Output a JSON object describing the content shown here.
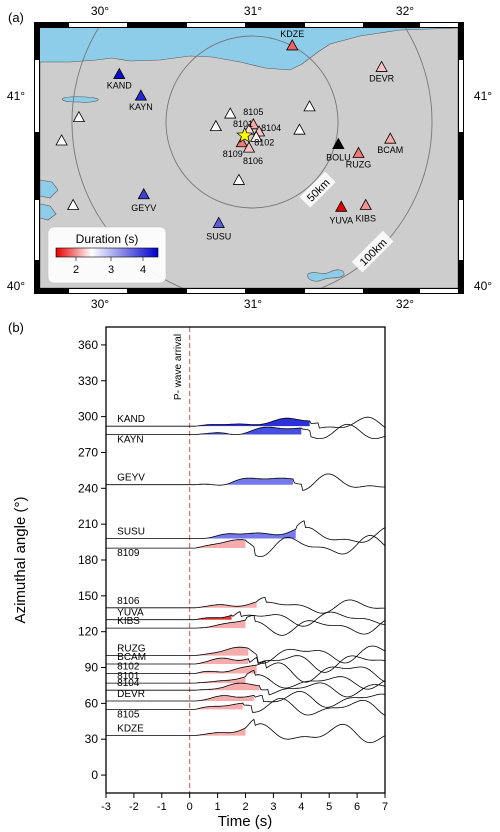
{
  "panel_a": {
    "label": "(a)",
    "lon_ticks": [
      "30°",
      "31°",
      "32°"
    ],
    "lat_ticks": [
      "41°",
      "40°"
    ],
    "lon_range": [
      29.6,
      32.5
    ],
    "lat_range": [
      39.97,
      41.42
    ],
    "circle_50": "50km",
    "circle_100": "100km",
    "legend_title": "Duration (s)",
    "legend_ticks": [
      "2",
      "3",
      "4"
    ],
    "stations": [
      {
        "name": "KDZE",
        "lon": 31.35,
        "lat": 41.32,
        "dur": 1.9
      },
      {
        "name": "DEVR",
        "lon": 31.97,
        "lat": 41.2,
        "dur": 2.3
      },
      {
        "name": "KAND",
        "lon": 30.15,
        "lat": 41.16,
        "dur": 4.4
      },
      {
        "name": "KAYN",
        "lon": 30.3,
        "lat": 41.04,
        "dur": 4.2
      },
      {
        "name": "8105",
        "lon": 31.08,
        "lat": 40.88,
        "dur": 2.2
      },
      {
        "name": "8101",
        "lon": 31.05,
        "lat": 40.85,
        "dur": 2.4
      },
      {
        "name": "8104",
        "lon": 31.12,
        "lat": 40.84,
        "dur": 2.3
      },
      {
        "name": "8102",
        "lon": 31.1,
        "lat": 40.81,
        "dur": 2.5
      },
      {
        "name": "8109",
        "lon": 31.0,
        "lat": 40.78,
        "dur": 2.0
      },
      {
        "name": "8106",
        "lon": 31.05,
        "lat": 40.75,
        "dur": 2.3
      },
      {
        "name": "BOLU",
        "lon": 31.67,
        "lat": 40.77,
        "dur": null
      },
      {
        "name": "RUZG",
        "lon": 31.81,
        "lat": 40.72,
        "dur": 2.0
      },
      {
        "name": "BCAM",
        "lon": 32.03,
        "lat": 40.8,
        "dur": 2.2
      },
      {
        "name": "GEYV",
        "lon": 30.32,
        "lat": 40.49,
        "dur": 4.0
      },
      {
        "name": "SUSU",
        "lon": 30.84,
        "lat": 40.33,
        "dur": 3.8
      },
      {
        "name": "YUVA",
        "lon": 31.69,
        "lat": 40.42,
        "dur": 1.5
      },
      {
        "name": "KIBS",
        "lon": 31.86,
        "lat": 40.43,
        "dur": 2.1
      }
    ],
    "unlabeled_stations": [
      {
        "lon": 29.87,
        "lat": 40.92
      },
      {
        "lon": 29.75,
        "lat": 40.79
      },
      {
        "lon": 29.83,
        "lat": 40.43
      },
      {
        "lon": 30.82,
        "lat": 40.87
      },
      {
        "lon": 30.92,
        "lat": 40.94
      },
      {
        "lon": 31.47,
        "lat": 40.98
      },
      {
        "lon": 31.4,
        "lat": 40.85
      },
      {
        "lon": 30.98,
        "lat": 40.57
      }
    ],
    "epicenter": {
      "lon": 31.02,
      "lat": 40.82
    }
  },
  "panel_b": {
    "label": "(b)",
    "ylabel": "Azimuthal angle (°)",
    "xlabel": "Time (s)",
    "xlim": [
      -3,
      7
    ],
    "ylim": [
      -15,
      375
    ],
    "yticks": [
      0,
      30,
      60,
      90,
      120,
      150,
      180,
      210,
      240,
      270,
      300,
      330,
      360
    ],
    "xticks": [
      -3,
      -2,
      -1,
      0,
      1,
      2,
      3,
      4,
      5,
      6,
      7
    ],
    "p_label": "P- wave arrival",
    "traces": [
      {
        "name": "KAND",
        "az": 292,
        "dur": 4.3,
        "style": "deep_blue",
        "label_dy": -4
      },
      {
        "name": "KAYN",
        "az": 285,
        "dur": 4.0,
        "style": "mid_blue",
        "label_dy": 8
      },
      {
        "name": "GEYV",
        "az": 243,
        "dur": 3.7,
        "style": "light_blue",
        "label_dy": -4
      },
      {
        "name": "SUSU",
        "az": 198,
        "dur": 3.8,
        "style": "light_blue",
        "label_dy": -4
      },
      {
        "name": "8109",
        "az": 190,
        "dur": 2.0,
        "style": "pale_red",
        "label_dy": 8
      },
      {
        "name": "8106",
        "az": 140,
        "dur": 2.4,
        "style": "pale_red",
        "label_dy": -4
      },
      {
        "name": "YUVA",
        "az": 130,
        "dur": 1.5,
        "style": "red",
        "label_dy": -4
      },
      {
        "name": "KIBS",
        "az": 123,
        "dur": 2.0,
        "style": "pale_red",
        "label_dy": -4
      },
      {
        "name": "RUZG",
        "az": 100,
        "dur": 2.1,
        "style": "pale_red",
        "label_dy": -4
      },
      {
        "name": "BCAM",
        "az": 93,
        "dur": 2.1,
        "style": "pale_red",
        "label_dy": -4
      },
      {
        "name": "8102",
        "az": 85,
        "dur": 2.4,
        "style": "pale_red",
        "label_dy": -4
      },
      {
        "name": "8101",
        "az": 77,
        "dur": 2.0,
        "style": "pale_red",
        "label_dy": -4
      },
      {
        "name": "8104",
        "az": 71,
        "dur": 2.5,
        "style": "pale_red",
        "label_dy": -4
      },
      {
        "name": "DEVR",
        "az": 62,
        "dur": 2.3,
        "style": "pale_red",
        "label_dy": -4
      },
      {
        "name": "8105",
        "az": 55,
        "dur": 1.9,
        "style": "pale_red",
        "label_dy": 8
      },
      {
        "name": "KDZE",
        "az": 33,
        "dur": 2.0,
        "style": "pale_red",
        "label_dy": -4
      }
    ]
  },
  "colors": {
    "sea": "#8ecdea",
    "land": "#cdcdcd",
    "deep_blue": "#1f26d8",
    "mid_blue": "#3d46e0",
    "light_blue": "#6e72ea",
    "red": "#e0241e",
    "pale_red": "#f4a3a3",
    "pline": "#e05050"
  }
}
